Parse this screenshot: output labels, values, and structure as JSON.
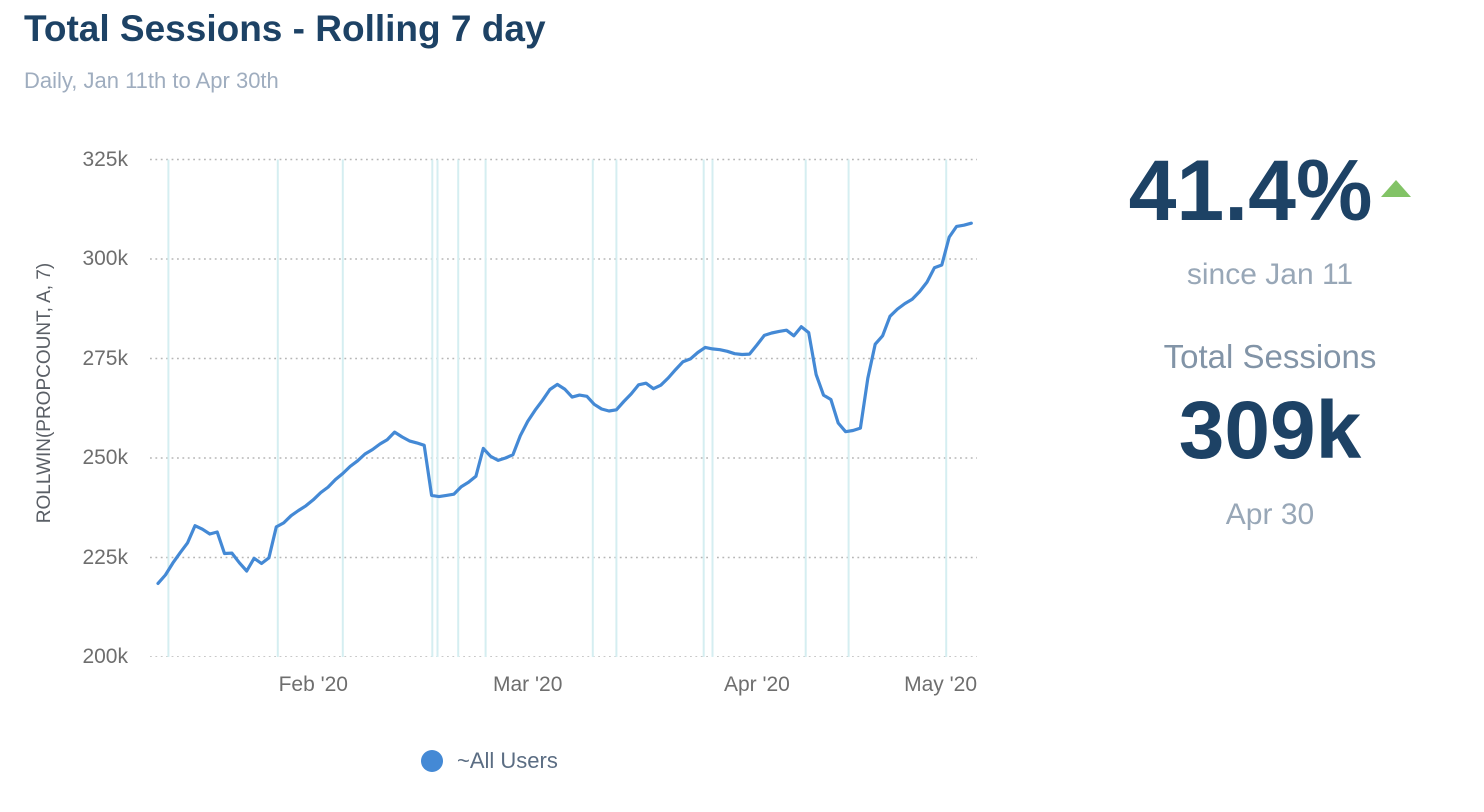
{
  "header": {
    "title": "Total Sessions - Rolling 7 day",
    "subtitle": "Daily, Jan 11th to Apr 30th"
  },
  "stats": {
    "percent_change": "41.4%",
    "percent_direction": "up",
    "since": "since Jan 11",
    "metric_label": "Total Sessions",
    "current_value": "309k",
    "current_date": "Apr 30"
  },
  "legend": {
    "label": "~All Users",
    "color": "#4489d5"
  },
  "colors": {
    "title_navy": "#1d4265",
    "muted_gray_blue": "#98a7b7",
    "line_blue": "#4489d5",
    "trend_up_green": "#82c366",
    "annotation_teal": "#d5eef1",
    "gridline_gray": "#b6b6b6"
  },
  "chart_data": {
    "type": "line",
    "title": "Total Sessions - Rolling 7 day",
    "y_axis_label": "ROLLWIN(PROPCOUNT, A, 7)",
    "frequency": "daily",
    "x_start_date": "2020-01-11",
    "x_end_date": "2020-04-30",
    "unit": "thousands of sessions",
    "ylim": [
      200,
      325
    ],
    "grid": "horizontal-dotted",
    "legend_position": "bottom",
    "yticks": [
      {
        "label": "325k",
        "value": 325
      },
      {
        "label": "300k",
        "value": 300
      },
      {
        "label": "275k",
        "value": 275
      },
      {
        "label": "250k",
        "value": 250
      },
      {
        "label": "225k",
        "value": 225
      },
      {
        "label": "200k",
        "value": 200
      }
    ],
    "xticks": [
      {
        "label": "Feb '20",
        "day": 21
      },
      {
        "label": "Mar '20",
        "day": 50
      },
      {
        "label": "Apr '20",
        "day": 81
      },
      {
        "label": "May '20",
        "day": 111,
        "align": "end"
      }
    ],
    "annotation_days": [
      1.4,
      16.2,
      25,
      37.1,
      37.8,
      40.6,
      44.3,
      58.8,
      62,
      73.8,
      75,
      87.6,
      93.4,
      106.6
    ],
    "series": [
      {
        "name": "~All Users",
        "color": "#4489d5",
        "values": [
          218.5,
          220.6,
          223.6,
          226.2,
          228.7,
          233.0,
          232.1,
          230.9,
          231.4,
          226.0,
          226.1,
          223.7,
          221.6,
          224.8,
          223.5,
          224.9,
          232.7,
          233.7,
          235.5,
          236.8,
          238.0,
          239.5,
          241.3,
          242.7,
          244.6,
          246.1,
          247.9,
          249.3,
          251.0,
          252.1,
          253.5,
          254.6,
          256.5,
          255.3,
          254.3,
          253.8,
          253.2,
          240.6,
          240.3,
          240.6,
          240.9,
          242.8,
          243.9,
          245.4,
          252.4,
          250.4,
          249.4,
          250.0,
          250.8,
          255.6,
          259.2,
          262.0,
          264.5,
          267.2,
          268.5,
          267.3,
          265.3,
          265.8,
          265.5,
          263.5,
          262.3,
          261.8,
          262.1,
          264.2,
          266.1,
          268.4,
          268.8,
          267.4,
          268.3,
          270.1,
          272.2,
          274.2,
          274.9,
          276.5,
          277.8,
          277.4,
          277.2,
          276.8,
          276.2,
          276.0,
          276.1,
          278.4,
          280.8,
          281.4,
          281.8,
          282.1,
          280.7,
          283.0,
          281.5,
          271.0,
          265.8,
          264.7,
          258.8,
          256.6,
          256.9,
          257.5,
          270.0,
          278.6,
          280.7,
          285.6,
          287.4,
          288.8,
          289.9,
          291.8,
          294.2,
          297.8,
          298.5,
          305.5,
          308.2,
          308.5,
          309.0
        ]
      }
    ]
  }
}
